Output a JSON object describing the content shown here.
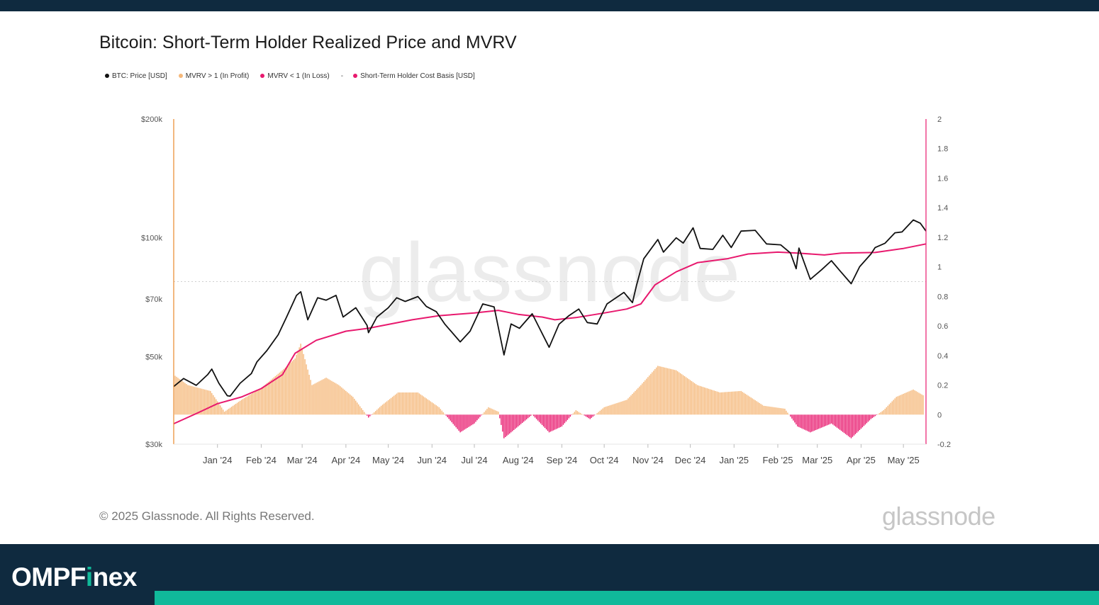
{
  "header": {
    "title": "Bitcoin: Short-Term Holder Realized Price and MVRV"
  },
  "legend": [
    {
      "label": "BTC: Price [USD]",
      "color": "#111111"
    },
    {
      "label": "MVRV > 1 (In Profit)",
      "color": "#f5b87a"
    },
    {
      "label": "MVRV < 1 (In Loss)",
      "color": "#e8196e"
    },
    {
      "label": "Short-Term Holder Cost Basis [USD]",
      "color": "#e8196e"
    }
  ],
  "watermark": {
    "text": "glassnode"
  },
  "footer": {
    "copyright": "© 2025 Glassnode. All Rights Reserved.",
    "brand": "glassnode",
    "logo_main": "OMPF",
    "logo_accent": "i",
    "logo_tail": "nex"
  },
  "colors": {
    "top_bar": "#0f2a3f",
    "footer_bar": "#0f2a3f",
    "footer_stripe": "#10b99a",
    "left_axis": "#e8892b",
    "right_axis": "#e8196e"
  },
  "chart_data": {
    "type": "line",
    "x_axis": {
      "ticks": [
        "Jan '24",
        "Feb '24",
        "Mar '24",
        "Apr '24",
        "May '24",
        "Jun '24",
        "Jul '24",
        "Aug '24",
        "Sep '24",
        "Oct '24",
        "Nov '24",
        "Dec '24",
        "Jan '25",
        "Feb '25",
        "Mar '25",
        "Apr '25",
        "May '25"
      ],
      "range": [
        "2023-12-15",
        "2025-05-31"
      ]
    },
    "y_left": {
      "scale": "log",
      "range": [
        30000,
        200000
      ],
      "ticks": [
        {
          "value": 30000,
          "label": "$30k"
        },
        {
          "value": 50000,
          "label": "$50k"
        },
        {
          "value": 70000,
          "label": "$70k"
        },
        {
          "value": 100000,
          "label": "$100k"
        },
        {
          "value": 200000,
          "label": "$200k"
        }
      ]
    },
    "y_right": {
      "scale": "linear",
      "range": [
        -0.2,
        2
      ],
      "ticks": [
        "-0.2",
        "0",
        "0.2",
        "0.4",
        "0.6",
        "0.8",
        "1",
        "1.2",
        "1.4",
        "1.6",
        "1.8",
        "2"
      ],
      "reference_line": 0.9
    },
    "series": [
      {
        "name": "BTC: Price [USD]",
        "axis": "left",
        "color": "#111111",
        "points": [
          [
            "2023-12-15",
            42000
          ],
          [
            "2023-12-22",
            44000
          ],
          [
            "2023-12-31",
            42300
          ],
          [
            "2024-01-08",
            45000
          ],
          [
            "2024-01-11",
            46500
          ],
          [
            "2024-01-16",
            42800
          ],
          [
            "2024-01-22",
            39800
          ],
          [
            "2024-01-24",
            39700
          ],
          [
            "2024-01-31",
            42800
          ],
          [
            "2024-02-08",
            45300
          ],
          [
            "2024-02-12",
            48500
          ],
          [
            "2024-02-19",
            51800
          ],
          [
            "2024-02-27",
            56800
          ],
          [
            "2024-03-04",
            63000
          ],
          [
            "2024-03-11",
            71500
          ],
          [
            "2024-03-14",
            73000
          ],
          [
            "2024-03-19",
            62000
          ],
          [
            "2024-03-26",
            70500
          ],
          [
            "2024-04-01",
            69500
          ],
          [
            "2024-04-08",
            71500
          ],
          [
            "2024-04-13",
            63000
          ],
          [
            "2024-04-22",
            66500
          ],
          [
            "2024-04-30",
            60000
          ],
          [
            "2024-05-01",
            57500
          ],
          [
            "2024-05-07",
            63000
          ],
          [
            "2024-05-15",
            66500
          ],
          [
            "2024-05-21",
            70500
          ],
          [
            "2024-05-27",
            69000
          ],
          [
            "2024-06-05",
            71000
          ],
          [
            "2024-06-11",
            67000
          ],
          [
            "2024-06-18",
            65000
          ],
          [
            "2024-06-24",
            60500
          ],
          [
            "2024-07-05",
            54500
          ],
          [
            "2024-07-12",
            58000
          ],
          [
            "2024-07-21",
            68000
          ],
          [
            "2024-07-29",
            66800
          ],
          [
            "2024-08-05",
            50500
          ],
          [
            "2024-08-10",
            60500
          ],
          [
            "2024-08-16",
            59000
          ],
          [
            "2024-08-25",
            64200
          ],
          [
            "2024-09-06",
            52800
          ],
          [
            "2024-09-13",
            60400
          ],
          [
            "2024-09-20",
            63500
          ],
          [
            "2024-09-27",
            66000
          ],
          [
            "2024-10-03",
            61000
          ],
          [
            "2024-10-10",
            60500
          ],
          [
            "2024-10-17",
            68000
          ],
          [
            "2024-10-29",
            72700
          ],
          [
            "2024-11-04",
            68500
          ],
          [
            "2024-11-07",
            76000
          ],
          [
            "2024-11-12",
            88500
          ],
          [
            "2024-11-22",
            99000
          ],
          [
            "2024-11-26",
            92000
          ],
          [
            "2024-12-05",
            100000
          ],
          [
            "2024-12-10",
            97000
          ],
          [
            "2024-12-17",
            106000
          ],
          [
            "2024-12-22",
            94000
          ],
          [
            "2024-12-31",
            93500
          ],
          [
            "2025-01-07",
            101500
          ],
          [
            "2025-01-13",
            94500
          ],
          [
            "2025-01-20",
            104000
          ],
          [
            "2025-01-30",
            104500
          ],
          [
            "2025-02-07",
            96500
          ],
          [
            "2025-02-17",
            96000
          ],
          [
            "2025-02-24",
            91500
          ],
          [
            "2025-02-28",
            83500
          ],
          [
            "2025-03-02",
            94200
          ],
          [
            "2025-03-10",
            78500
          ],
          [
            "2025-03-18",
            83000
          ],
          [
            "2025-03-25",
            87500
          ],
          [
            "2025-03-31",
            82500
          ],
          [
            "2025-04-08",
            76500
          ],
          [
            "2025-04-14",
            84500
          ],
          [
            "2025-04-22",
            91000
          ],
          [
            "2025-04-25",
            94500
          ],
          [
            "2025-05-02",
            96900
          ],
          [
            "2025-05-09",
            103000
          ],
          [
            "2025-05-14",
            103500
          ],
          [
            "2025-05-22",
            111000
          ],
          [
            "2025-05-27",
            108900
          ],
          [
            "2025-05-31",
            104000
          ]
        ]
      },
      {
        "name": "Short-Term Holder Cost Basis [USD]",
        "axis": "left",
        "color": "#e8196e",
        "points": [
          [
            "2023-12-15",
            33800
          ],
          [
            "2024-01-01",
            36000
          ],
          [
            "2024-01-15",
            38000
          ],
          [
            "2024-02-01",
            39500
          ],
          [
            "2024-02-15",
            41500
          ],
          [
            "2024-03-01",
            45000
          ],
          [
            "2024-03-10",
            51000
          ],
          [
            "2024-03-25",
            55000
          ],
          [
            "2024-04-15",
            58000
          ],
          [
            "2024-05-01",
            59000
          ],
          [
            "2024-06-01",
            62000
          ],
          [
            "2024-06-20",
            63500
          ],
          [
            "2024-07-15",
            64500
          ],
          [
            "2024-08-01",
            65500
          ],
          [
            "2024-08-15",
            64000
          ],
          [
            "2024-09-01",
            63000
          ],
          [
            "2024-09-10",
            62000
          ],
          [
            "2024-09-25",
            62800
          ],
          [
            "2024-10-15",
            64500
          ],
          [
            "2024-10-31",
            66000
          ],
          [
            "2024-11-10",
            68000
          ],
          [
            "2024-11-20",
            76000
          ],
          [
            "2024-12-05",
            82000
          ],
          [
            "2024-12-20",
            86500
          ],
          [
            "2025-01-10",
            88500
          ],
          [
            "2025-01-25",
            91000
          ],
          [
            "2025-02-15",
            92000
          ],
          [
            "2025-03-01",
            91500
          ],
          [
            "2025-03-20",
            90500
          ],
          [
            "2025-04-01",
            91500
          ],
          [
            "2025-04-25",
            91800
          ],
          [
            "2025-05-15",
            94000
          ],
          [
            "2025-05-31",
            96500
          ]
        ]
      },
      {
        "name": "MVRV",
        "axis": "right",
        "positive_color": "#f5b87a",
        "negative_color": "#e8196e",
        "points": [
          [
            "2023-12-15",
            0.27
          ],
          [
            "2023-12-25",
            0.2
          ],
          [
            "2024-01-10",
            0.16
          ],
          [
            "2024-01-20",
            0.02
          ],
          [
            "2024-02-01",
            0.1
          ],
          [
            "2024-02-15",
            0.18
          ],
          [
            "2024-03-01",
            0.3
          ],
          [
            "2024-03-10",
            0.38
          ],
          [
            "2024-03-14",
            0.48
          ],
          [
            "2024-03-22",
            0.2
          ],
          [
            "2024-04-01",
            0.25
          ],
          [
            "2024-04-10",
            0.2
          ],
          [
            "2024-04-20",
            0.12
          ],
          [
            "2024-05-01",
            -0.02
          ],
          [
            "2024-05-10",
            0.06
          ],
          [
            "2024-05-22",
            0.15
          ],
          [
            "2024-06-05",
            0.15
          ],
          [
            "2024-06-20",
            0.05
          ],
          [
            "2024-07-05",
            -0.12
          ],
          [
            "2024-07-15",
            -0.06
          ],
          [
            "2024-07-25",
            0.05
          ],
          [
            "2024-08-01",
            0.02
          ],
          [
            "2024-08-05",
            -0.16
          ],
          [
            "2024-08-15",
            -0.08
          ],
          [
            "2024-08-25",
            0.0
          ],
          [
            "2024-09-06",
            -0.12
          ],
          [
            "2024-09-15",
            -0.08
          ],
          [
            "2024-09-25",
            0.03
          ],
          [
            "2024-10-05",
            -0.03
          ],
          [
            "2024-10-15",
            0.05
          ],
          [
            "2024-10-31",
            0.1
          ],
          [
            "2024-11-10",
            0.2
          ],
          [
            "2024-11-22",
            0.33
          ],
          [
            "2024-12-05",
            0.3
          ],
          [
            "2024-12-20",
            0.2
          ],
          [
            "2025-01-05",
            0.15
          ],
          [
            "2025-01-20",
            0.16
          ],
          [
            "2025-02-05",
            0.06
          ],
          [
            "2025-02-20",
            0.04
          ],
          [
            "2025-03-01",
            -0.08
          ],
          [
            "2025-03-10",
            -0.12
          ],
          [
            "2025-03-25",
            -0.06
          ],
          [
            "2025-04-08",
            -0.16
          ],
          [
            "2025-04-22",
            -0.03
          ],
          [
            "2025-05-01",
            0.03
          ],
          [
            "2025-05-10",
            0.12
          ],
          [
            "2025-05-22",
            0.17
          ],
          [
            "2025-05-31",
            0.12
          ]
        ]
      }
    ]
  }
}
